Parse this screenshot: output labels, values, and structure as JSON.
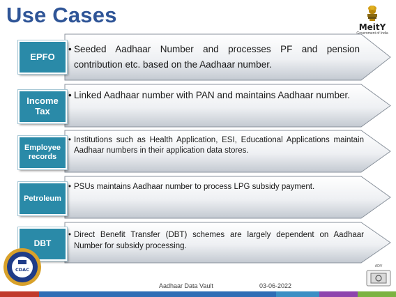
{
  "slide": {
    "title": "Use Cases"
  },
  "logo": {
    "name": "MeitY",
    "subtitle": "Government of India"
  },
  "rows": [
    {
      "label": "EPFO",
      "text": "Seeded Aadhaar Number and processes PF and pension contribution etc. based on the Aadhaar number."
    },
    {
      "label": "Income Tax",
      "text": "Linked Aadhaar number  with PAN and maintains Aadhaar number."
    },
    {
      "label": "Employee records",
      "text": "Institutions such as Health Application, ESI, Educational Applications maintain Aadhaar numbers in their application data stores."
    },
    {
      "label": "Petroleum",
      "text": "PSUs maintains Aadhaar number to process LPG subsidy payment."
    },
    {
      "label": "DBT",
      "text": "Direct Benefit Transfer (DBT) schemes are largely dependent on Aadhaar Number for subsidy processing."
    }
  ],
  "footer": {
    "title": "Aadhaar Data Vault",
    "date": "03-06-2022"
  },
  "badges": {
    "cdac_text": "CDAC",
    "adv_text": "ADV"
  },
  "colors": {
    "title": "#2f5597",
    "label_box": "#2a8aa8",
    "arrow_fill_top": "#ffffff",
    "arrow_fill_bottom": "#c9cfd6"
  }
}
